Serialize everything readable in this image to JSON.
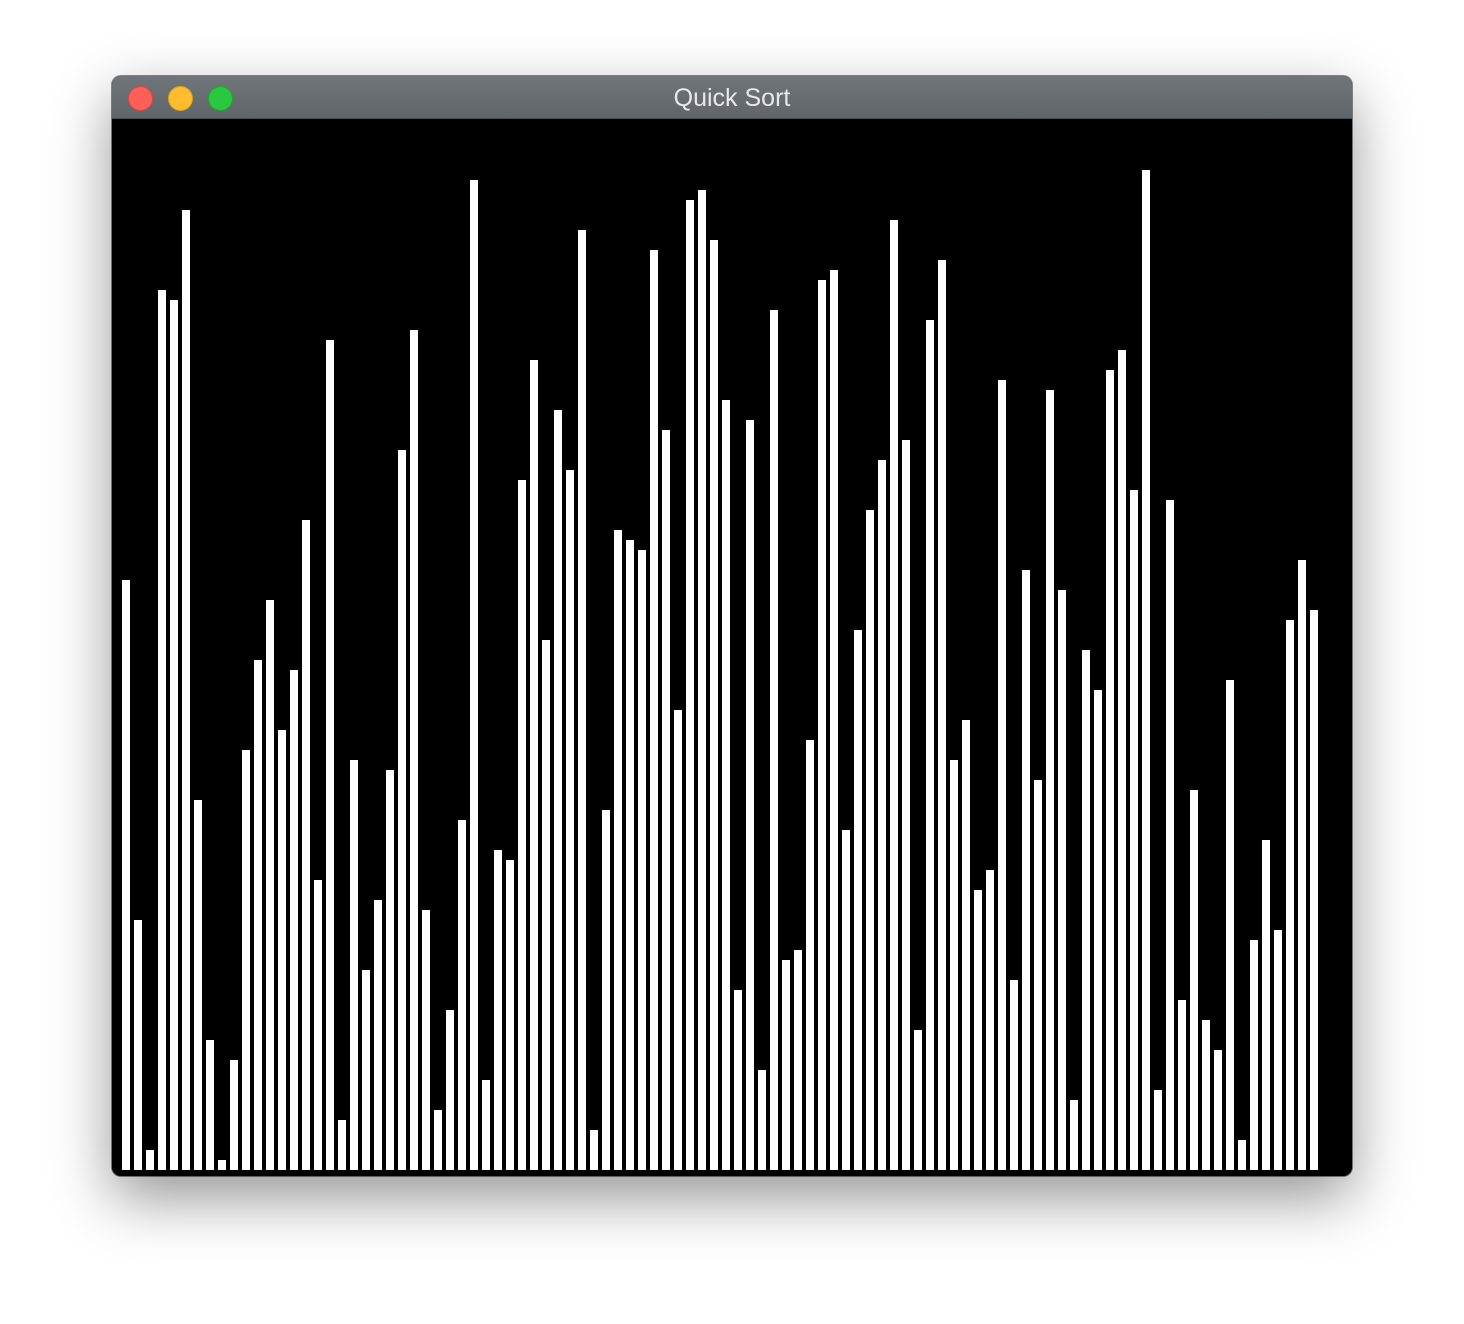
{
  "window": {
    "title": "Quick Sort"
  },
  "colors": {
    "canvas_background": "#000000",
    "bar_fill": "#ffffff",
    "close_button": "#fe5f57",
    "minimize_button": "#febc2e",
    "zoom_button": "#29c840"
  },
  "chart_data": {
    "type": "bar",
    "max_value": 1000,
    "values": [
      590,
      250,
      20,
      880,
      870,
      960,
      370,
      130,
      10,
      110,
      420,
      510,
      570,
      440,
      500,
      650,
      290,
      830,
      50,
      410,
      200,
      270,
      400,
      720,
      840,
      260,
      60,
      160,
      350,
      990,
      90,
      320,
      310,
      690,
      810,
      530,
      760,
      700,
      940,
      40,
      360,
      640,
      630,
      620,
      920,
      740,
      460,
      970,
      980,
      930,
      770,
      180,
      750,
      100,
      860,
      210,
      220,
      430,
      890,
      900,
      340,
      540,
      660,
      710,
      950,
      730,
      140,
      850,
      910,
      410,
      450,
      280,
      300,
      790,
      190,
      600,
      390,
      780,
      580,
      70,
      520,
      480,
      800,
      820,
      680,
      1000,
      80,
      670,
      170,
      380,
      150,
      120,
      490,
      30,
      230,
      330,
      240,
      550,
      610,
      560
    ]
  }
}
